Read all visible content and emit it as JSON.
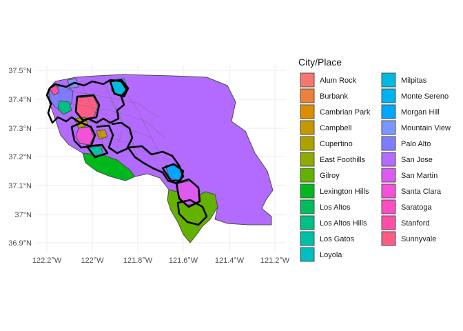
{
  "chart_data": {
    "type": "map",
    "title": "",
    "xlabel": "",
    "ylabel": "",
    "x_ticks": [
      "122.2°W",
      "122°W",
      "121.8°W",
      "121.6°W",
      "121.4°W",
      "121.2°W"
    ],
    "y_ticks": [
      "37.5°N",
      "37.4°N",
      "37.3°N",
      "37.2°N",
      "37.1°N",
      "37°N",
      "36.9°N"
    ],
    "grid": true,
    "legend": {
      "title": "City/Place",
      "position": "right",
      "columns": 2,
      "items": [
        {
          "name": "Alum Rock",
          "color": "#F8766D"
        },
        {
          "name": "Burbank",
          "color": "#EC8239"
        },
        {
          "name": "Cambrian Park",
          "color": "#DB8E00"
        },
        {
          "name": "Campbell",
          "color": "#C79800"
        },
        {
          "name": "Cupertino",
          "color": "#AEA200"
        },
        {
          "name": "East Foothills",
          "color": "#8FAA00"
        },
        {
          "name": "Gilroy",
          "color": "#64B200"
        },
        {
          "name": "Lexington Hills",
          "color": "#00B81B"
        },
        {
          "name": "Los Altos",
          "color": "#00BD5C"
        },
        {
          "name": "Los Altos Hills",
          "color": "#00C085"
        },
        {
          "name": "Los Gatos",
          "color": "#00C1A7"
        },
        {
          "name": "Loyola",
          "color": "#00BFC4"
        },
        {
          "name": "Milpitas",
          "color": "#00BADE"
        },
        {
          "name": "Monte Sereno",
          "color": "#00B2F3"
        },
        {
          "name": "Morgan Hill",
          "color": "#00A6FF"
        },
        {
          "name": "Mountain View",
          "color": "#7C96FF"
        },
        {
          "name": "Palo Alto",
          "color": "#7F7DFF"
        },
        {
          "name": "San Jose",
          "color": "#B36AFF"
        },
        {
          "name": "San Martin",
          "color": "#DC5AF0"
        },
        {
          "name": "Santa Clara",
          "color": "#F451D9"
        },
        {
          "name": "Saratoga",
          "color": "#FF4CC3"
        },
        {
          "name": "Stanford",
          "color": "#FF4EA8"
        },
        {
          "name": "Sunnyvale",
          "color": "#FF5C83"
        }
      ]
    }
  }
}
